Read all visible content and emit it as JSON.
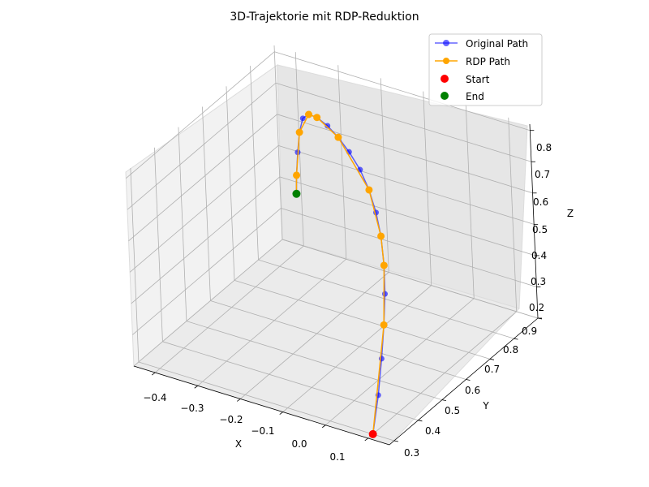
{
  "chart_data": {
    "type": "line",
    "title": "3D-Trajektorie mit RDP-Reduktion",
    "xlabel": "X",
    "ylabel": "Y",
    "zlabel": "Z",
    "xlim": [
      -0.45,
      0.15
    ],
    "ylim": [
      0.28,
      0.9
    ],
    "zlim": [
      0.2,
      0.82
    ],
    "x_ticks": [
      "−0.4",
      "−0.3",
      "−0.2",
      "−0.1",
      "0.0",
      "0.1"
    ],
    "y_ticks": [
      "0.3",
      "0.4",
      "0.5",
      "0.6",
      "0.7",
      "0.8",
      "0.9"
    ],
    "z_ticks": [
      "0.2",
      "0.3",
      "0.4",
      "0.5",
      "0.6",
      "0.7",
      "0.8"
    ],
    "grid": true,
    "legend_position": "top-right",
    "colors": {
      "original": "#0000ff",
      "rdp": "#ffa500",
      "start": "#ff0000",
      "end": "#008000"
    },
    "series": [
      {
        "name": "Original Path",
        "points": [
          [
            0.1,
            0.3,
            0.2
          ],
          [
            0.096,
            0.335,
            0.3
          ],
          [
            0.087,
            0.37,
            0.39
          ],
          [
            0.075,
            0.405,
            0.47
          ],
          [
            0.06,
            0.44,
            0.54
          ],
          [
            0.04,
            0.475,
            0.6
          ],
          [
            0.015,
            0.51,
            0.66
          ],
          [
            -0.015,
            0.545,
            0.7
          ],
          [
            -0.05,
            0.58,
            0.735
          ],
          [
            -0.09,
            0.615,
            0.76
          ],
          [
            -0.135,
            0.65,
            0.775
          ],
          [
            -0.18,
            0.685,
            0.78
          ],
          [
            -0.225,
            0.72,
            0.775
          ],
          [
            -0.27,
            0.755,
            0.76
          ],
          [
            -0.31,
            0.79,
            0.73
          ],
          [
            -0.345,
            0.825,
            0.68
          ],
          [
            -0.375,
            0.86,
            0.6
          ],
          [
            -0.39,
            0.875,
            0.52
          ],
          [
            -0.398,
            0.88,
            0.44
          ],
          [
            -0.4,
            0.88,
            0.38
          ]
        ]
      },
      {
        "name": "RDP Path",
        "points": [
          [
            0.1,
            0.3,
            0.2
          ],
          [
            0.075,
            0.405,
            0.47
          ],
          [
            0.04,
            0.475,
            0.6
          ],
          [
            0.015,
            0.51,
            0.66
          ],
          [
            -0.05,
            0.58,
            0.735
          ],
          [
            -0.18,
            0.685,
            0.78
          ],
          [
            -0.27,
            0.755,
            0.76
          ],
          [
            -0.31,
            0.79,
            0.73
          ],
          [
            -0.375,
            0.86,
            0.6
          ],
          [
            -0.398,
            0.88,
            0.44
          ],
          [
            -0.4,
            0.88,
            0.38
          ]
        ]
      },
      {
        "name": "Start",
        "points": [
          [
            0.1,
            0.3,
            0.2
          ]
        ]
      },
      {
        "name": "End",
        "points": [
          [
            -0.4,
            0.88,
            0.38
          ]
        ]
      }
    ]
  }
}
